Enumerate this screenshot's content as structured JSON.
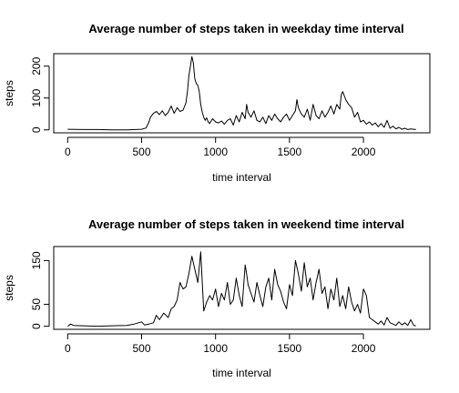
{
  "chart_data": [
    {
      "type": "line",
      "title": "Average number of steps taken in  weekday  time interval",
      "xlabel": "time interval",
      "ylabel": "steps",
      "xlim": [
        0,
        2355
      ],
      "ylim": [
        0,
        230
      ],
      "x_ticks": [
        0,
        500,
        1000,
        1500,
        2000
      ],
      "y_ticks": [
        0,
        100,
        200
      ],
      "color": "#000000",
      "grid": false,
      "series": [
        {
          "x": [
            0,
            100,
            200,
            300,
            400,
            500,
            530,
            550,
            560,
            580,
            600,
            620,
            640,
            660,
            680,
            700,
            720,
            740,
            760,
            780,
            800,
            810,
            820,
            830,
            840,
            850,
            860,
            870,
            880,
            890,
            900,
            910,
            920,
            930,
            940,
            950,
            960,
            980,
            1000,
            1020,
            1040,
            1060,
            1080,
            1100,
            1120,
            1140,
            1160,
            1180,
            1200,
            1210,
            1220,
            1240,
            1260,
            1280,
            1300,
            1320,
            1340,
            1360,
            1380,
            1400,
            1420,
            1440,
            1460,
            1480,
            1500,
            1520,
            1540,
            1550,
            1560,
            1580,
            1600,
            1620,
            1640,
            1660,
            1680,
            1700,
            1720,
            1740,
            1760,
            1780,
            1800,
            1820,
            1840,
            1850,
            1860,
            1880,
            1900,
            1920,
            1940,
            1960,
            1980,
            2000,
            2020,
            2040,
            2060,
            2080,
            2100,
            2120,
            2140,
            2160,
            2180,
            2200,
            2220,
            2240,
            2260,
            2280,
            2300,
            2320,
            2340,
            2355
          ],
          "y": [
            2,
            1,
            1,
            0,
            0,
            2,
            6,
            25,
            40,
            52,
            58,
            48,
            60,
            45,
            55,
            75,
            52,
            70,
            58,
            62,
            85,
            120,
            170,
            200,
            230,
            210,
            160,
            145,
            140,
            120,
            80,
            55,
            40,
            30,
            38,
            25,
            20,
            35,
            25,
            22,
            28,
            18,
            30,
            35,
            15,
            45,
            25,
            55,
            35,
            80,
            55,
            40,
            60,
            30,
            25,
            40,
            20,
            45,
            30,
            50,
            35,
            25,
            40,
            50,
            30,
            45,
            60,
            95,
            70,
            50,
            40,
            65,
            30,
            80,
            45,
            35,
            60,
            40,
            55,
            75,
            50,
            80,
            65,
            110,
            120,
            95,
            80,
            70,
            40,
            55,
            25,
            30,
            18,
            25,
            15,
            22,
            10,
            20,
            8,
            30,
            5,
            12,
            3,
            8,
            2,
            5,
            1,
            3,
            2,
            1
          ]
        }
      ]
    },
    {
      "type": "line",
      "title": "Average number of steps taken in  weekend  time interval",
      "xlabel": "time interval",
      "ylabel": "steps",
      "xlim": [
        0,
        2355
      ],
      "ylim": [
        0,
        175
      ],
      "x_ticks": [
        0,
        500,
        1000,
        1500,
        2000
      ],
      "y_ticks": [
        0,
        50,
        150
      ],
      "color": "#000000",
      "grid": false,
      "series": [
        {
          "x": [
            0,
            20,
            40,
            100,
            200,
            300,
            400,
            450,
            480,
            500,
            520,
            550,
            580,
            600,
            620,
            650,
            680,
            700,
            720,
            740,
            760,
            780,
            800,
            820,
            840,
            860,
            880,
            900,
            920,
            940,
            960,
            980,
            1000,
            1020,
            1040,
            1060,
            1080,
            1100,
            1120,
            1140,
            1160,
            1180,
            1200,
            1210,
            1220,
            1240,
            1260,
            1280,
            1300,
            1320,
            1340,
            1360,
            1380,
            1400,
            1420,
            1440,
            1460,
            1480,
            1500,
            1520,
            1540,
            1560,
            1580,
            1600,
            1620,
            1640,
            1660,
            1680,
            1700,
            1720,
            1740,
            1760,
            1780,
            1800,
            1820,
            1840,
            1860,
            1880,
            1900,
            1920,
            1940,
            1960,
            1980,
            2000,
            2020,
            2040,
            2060,
            2080,
            2100,
            2120,
            2140,
            2160,
            2180,
            2200,
            2220,
            2240,
            2260,
            2280,
            2300,
            2320,
            2340,
            2355
          ],
          "y": [
            0,
            5,
            2,
            1,
            0,
            1,
            2,
            5,
            8,
            10,
            3,
            5,
            8,
            25,
            15,
            30,
            20,
            40,
            45,
            60,
            100,
            85,
            90,
            120,
            160,
            130,
            100,
            170,
            35,
            55,
            70,
            60,
            85,
            45,
            75,
            60,
            100,
            50,
            60,
            110,
            70,
            45,
            140,
            120,
            95,
            75,
            55,
            100,
            70,
            45,
            90,
            110,
            60,
            130,
            95,
            80,
            55,
            40,
            95,
            70,
            150,
            120,
            80,
            145,
            90,
            110,
            60,
            100,
            130,
            75,
            90,
            40,
            85,
            60,
            110,
            45,
            70,
            40,
            90,
            55,
            35,
            50,
            30,
            85,
            70,
            20,
            15,
            10,
            5,
            12,
            3,
            20,
            8,
            5,
            2,
            10,
            3,
            8,
            2,
            15,
            2,
            1
          ]
        }
      ]
    }
  ]
}
